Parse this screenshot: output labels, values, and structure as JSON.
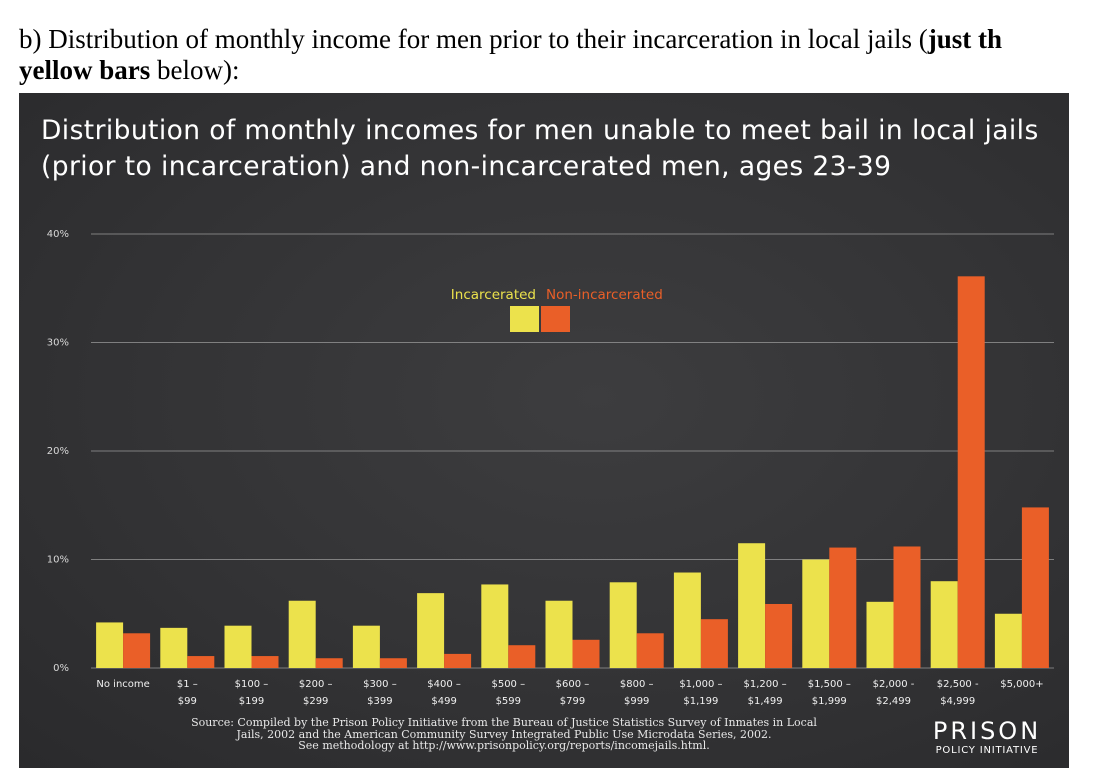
{
  "intro": {
    "prefix": "b) Distribution of monthly income for men prior to their incarceration in local jails (",
    "bold": "just th",
    "bold2": "yellow bars",
    "suffix": " below):"
  },
  "colors": {
    "incarcerated": "#ece24c",
    "non_incarcerated": "#ea5f28",
    "background": "#333335",
    "grid": "#9a9a9a",
    "text": "#ffffff"
  },
  "chart_data": {
    "type": "bar",
    "title": "Distribution of monthly incomes for men unable to meet bail in local jails (prior to incarceration) and non-incarcerated men, ages 23-39",
    "xlabel": "",
    "ylabel": "",
    "ylim": [
      0,
      40
    ],
    "yticks": [
      0,
      10,
      20,
      30,
      40
    ],
    "ytick_labels": [
      "0%",
      "10%",
      "20%",
      "30%",
      "40%"
    ],
    "grid": true,
    "legend_position": "top-center",
    "categories": [
      [
        "No income",
        ""
      ],
      [
        "$1 –",
        "$99"
      ],
      [
        "$100 –",
        "$199"
      ],
      [
        "$200 –",
        "$299"
      ],
      [
        "$300 –",
        "$399"
      ],
      [
        "$400 –",
        "$499"
      ],
      [
        "$500 –",
        "$599"
      ],
      [
        "$600 –",
        "$799"
      ],
      [
        "$800 –",
        "$999"
      ],
      [
        "$1,000 –",
        "$1,199"
      ],
      [
        "$1,200 –",
        "$1,499"
      ],
      [
        "$1,500 –",
        "$1,999"
      ],
      [
        "$2,000 -",
        "$2,499"
      ],
      [
        "$2,500 -",
        "$4,999"
      ],
      [
        "$5,000+",
        ""
      ]
    ],
    "series": [
      {
        "name": "Incarcerated",
        "values": [
          4.2,
          3.7,
          3.9,
          6.2,
          3.9,
          6.9,
          7.7,
          6.2,
          7.9,
          8.8,
          11.5,
          10.0,
          6.1,
          8.0,
          5.0
        ]
      },
      {
        "name": "Non-incarcerated",
        "values": [
          3.2,
          1.1,
          1.1,
          0.9,
          0.9,
          1.3,
          2.1,
          2.6,
          3.2,
          4.5,
          5.9,
          11.1,
          11.2,
          36.1,
          14.8
        ]
      }
    ]
  },
  "source": {
    "line1": "Source: Compiled by the Prison Policy Initiative from the Bureau of Justice Statistics Survey of Inmates in Local",
    "line2": "Jails, 2002 and the American Community Survey Integrated Public Use Microdata Series, 2002.",
    "line3": "See methodology at http://www.prisonpolicy.org/reports/incomejails.html."
  },
  "logo": {
    "main": "PRISON",
    "sub": "POLICY INITIATIVE"
  }
}
